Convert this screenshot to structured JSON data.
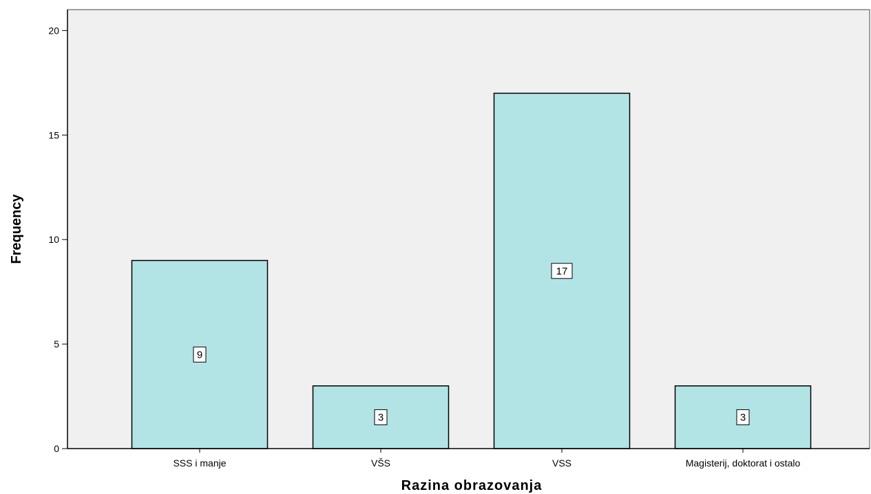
{
  "chart_data": {
    "type": "bar",
    "categories": [
      "SSS i manje",
      "VŠS",
      "VSS",
      "Magisterij, doktorat i ostalo"
    ],
    "values": [
      9,
      3,
      17,
      3
    ],
    "data_labels": [
      "9",
      "3",
      "17",
      "3"
    ],
    "xlabel": "Razina obrazovanja",
    "ylabel": "Frequency",
    "ylim": [
      0,
      21
    ],
    "yticks": [
      0,
      5,
      10,
      15,
      20
    ],
    "ytick_labels": [
      "0",
      "5",
      "10",
      "15",
      "20"
    ],
    "grid": false,
    "legend": "none",
    "colors": {
      "bar_fill": "#b2e4e6",
      "bar_stroke": "#000000",
      "plot_background": "#f0f0f0",
      "label_box_fill": "#ffffff"
    }
  }
}
